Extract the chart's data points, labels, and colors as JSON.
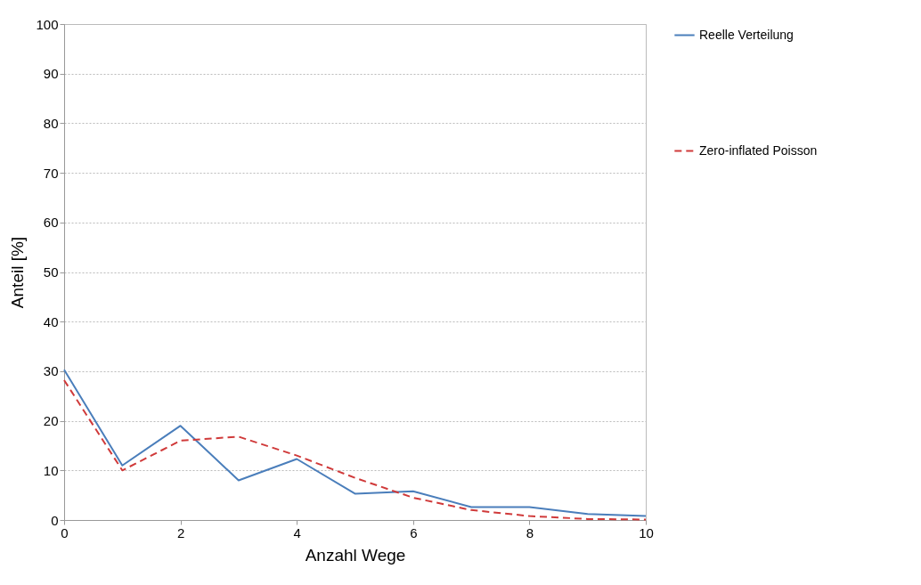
{
  "chart_data": {
    "type": "line",
    "xlabel": "Anzahl Wege",
    "ylabel": "Anteil [%]",
    "x": [
      0,
      1,
      2,
      3,
      4,
      5,
      6,
      7,
      8,
      9,
      10
    ],
    "series": [
      {
        "name": "Reelle Verteilung",
        "color": "#4a7ebb",
        "line_style": "solid",
        "values": [
          30.3,
          11,
          19,
          8,
          12.3,
          5.3,
          5.8,
          2.6,
          2.6,
          1.2,
          0.8
        ]
      },
      {
        "name": "Zero-inflated Poisson",
        "color": "#d03a3a",
        "line_style": "dashed",
        "values": [
          28.2,
          10,
          16,
          16.8,
          13,
          8.5,
          4.5,
          2,
          0.8,
          0.2,
          0.1
        ]
      }
    ],
    "xlim": [
      0,
      10
    ],
    "xticks": [
      0,
      2,
      4,
      6,
      8,
      10
    ],
    "ylim": [
      0,
      100
    ],
    "yticks": [
      0,
      10,
      20,
      30,
      40,
      50,
      60,
      70,
      80,
      90,
      100
    ],
    "grid": "y",
    "legend": "right",
    "marker": "none"
  }
}
